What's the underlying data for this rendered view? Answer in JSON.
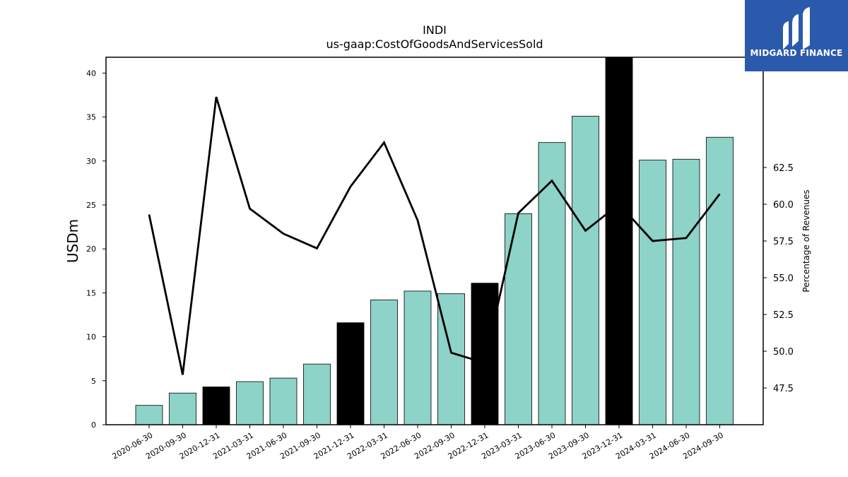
{
  "logo": {
    "text": "MIDGARD FINANCE",
    "icon": "midgard-logo-icon",
    "background": "#2b5aad"
  },
  "chart_data": {
    "type": "bar",
    "title": "INDI",
    "subtitle": "us-gaap:CostOfGoodsAndServicesSold",
    "ylabel": "USDm",
    "y2label": "Percentage of Revenues",
    "ylim": [
      0,
      41.8
    ],
    "y2lim": [
      45.0,
      70.0
    ],
    "yticks": [
      0,
      5,
      10,
      15,
      20,
      25,
      30,
      35,
      40
    ],
    "y2ticks": [
      47.5,
      50.0,
      52.5,
      55.0,
      57.5,
      60.0,
      62.5
    ],
    "categories": [
      "2020-06-30",
      "2020-09-30",
      "2020-12-31",
      "2021-03-31",
      "2021-06-30",
      "2021-09-30",
      "2021-12-31",
      "2022-03-31",
      "2022-06-30",
      "2022-09-30",
      "2022-12-31",
      "2023-03-31",
      "2023-06-30",
      "2023-09-30",
      "2023-12-31",
      "2024-03-31",
      "2024-06-30",
      "2024-09-30"
    ],
    "series": [
      {
        "type": "bar",
        "values": [
          2.2,
          3.6,
          4.3,
          4.9,
          5.3,
          6.9,
          11.6,
          14.2,
          15.2,
          14.9,
          16.1,
          24.0,
          32.1,
          35.1,
          41.8,
          30.1,
          30.2,
          32.7
        ],
        "highlight": [
          false,
          false,
          true,
          false,
          false,
          false,
          true,
          false,
          false,
          false,
          true,
          false,
          false,
          false,
          true,
          false,
          false,
          false
        ],
        "color": "#8dd3c7",
        "highlight_color": "#000000"
      },
      {
        "type": "line",
        "axis": "right",
        "values": [
          59.3,
          48.4,
          67.3,
          59.7,
          58.0,
          57.0,
          61.2,
          64.2,
          58.9,
          49.9,
          49.2,
          59.4,
          61.6,
          58.2,
          60.0,
          57.5,
          57.7,
          60.7
        ],
        "color": "#000000"
      }
    ]
  }
}
